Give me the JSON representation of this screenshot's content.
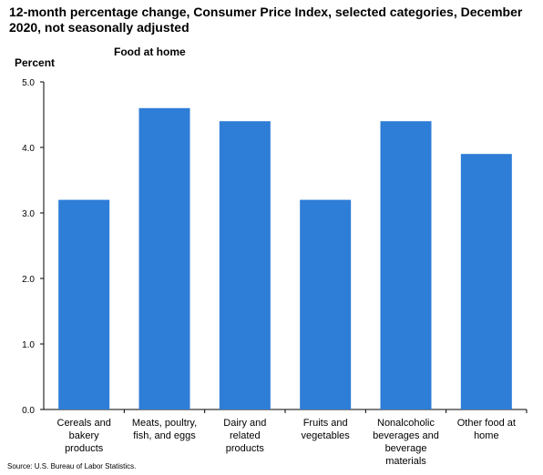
{
  "title": "12-month percentage change, Consumer Price Index, selected categories, December 2020, not seasonally adjusted",
  "subtitle": "Food at home",
  "source": "Source: U.S. Bureau of Labor Statistics.",
  "colors": {
    "bar": "#2e7dd7",
    "axis": "#000000"
  },
  "chart_data": {
    "type": "bar",
    "title": "12-month percentage change, Consumer Price Index, selected categories, December 2020, not seasonally adjusted",
    "subtitle": "Food at home",
    "ylabel": "Percent",
    "xlabel": "",
    "ylim": [
      0,
      5
    ],
    "yticks": [
      "0.0",
      "1.0",
      "2.0",
      "3.0",
      "4.0",
      "5.0"
    ],
    "grid": false,
    "categories": [
      [
        "Cereals and",
        "bakery",
        "products"
      ],
      [
        "Meats, poultry,",
        "fish, and eggs"
      ],
      [
        "Dairy and",
        "related",
        "products"
      ],
      [
        "Fruits and",
        "vegetables"
      ],
      [
        "Nonalcoholic",
        "beverages and",
        "beverage",
        "materials"
      ],
      [
        "Other food at",
        "home"
      ]
    ],
    "values": [
      3.2,
      4.6,
      4.4,
      3.2,
      4.4,
      3.9
    ]
  }
}
